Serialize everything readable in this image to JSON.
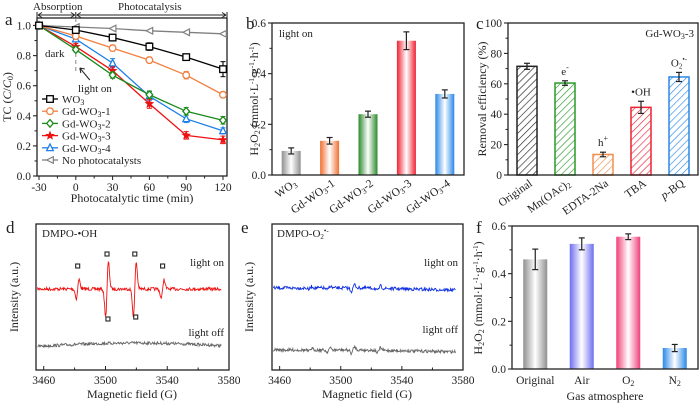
{
  "figure": {
    "panel_labels": [
      "a",
      "b",
      "c",
      "d",
      "e",
      "f"
    ]
  },
  "chart_data": [
    {
      "panel": "a",
      "type": "line",
      "title": "",
      "xlabel": "Photocatalytic time (min)",
      "ylabel": "TC (C/C0)",
      "x": [
        -30,
        0,
        30,
        60,
        90,
        120
      ],
      "xlim": [
        -30,
        120
      ],
      "ylim": [
        0,
        1.05
      ],
      "xticks": [
        "-30",
        "0",
        "30",
        "60",
        "90",
        "120"
      ],
      "yticks": [
        "0.0",
        "0.2",
        "0.4",
        "0.6",
        "0.8",
        "1.0"
      ],
      "top_annotations": {
        "left": "Absorption",
        "right": "Photocatalysis"
      },
      "annotations": [
        "dark",
        "light on"
      ],
      "legend_position": "bottom-left",
      "series": [
        {
          "name": "WO3",
          "label_main": "WO",
          "label_sub": "3",
          "label_suffix": "",
          "color": "#000000",
          "marker": "square",
          "values": [
            1.0,
            0.97,
            0.92,
            0.86,
            0.79,
            0.71
          ],
          "errors": [
            0.01,
            0.02,
            0.015,
            0.025,
            0.02,
            0.05
          ]
        },
        {
          "name": "Gd-WO3-1",
          "label_main": "Gd-WO",
          "label_sub": "3",
          "label_suffix": "-1",
          "color": "#F08040",
          "marker": "circle",
          "values": [
            1.0,
            0.93,
            0.85,
            0.77,
            0.67,
            0.54
          ],
          "errors": [
            0.01,
            0.015,
            0.02,
            0.02,
            0.025,
            0.02
          ]
        },
        {
          "name": "Gd-WO3-2",
          "label_main": "Gd-WO",
          "label_sub": "3",
          "label_suffix": "-2",
          "color": "#1A8A1A",
          "marker": "diamond",
          "values": [
            1.0,
            0.84,
            0.67,
            0.54,
            0.43,
            0.37
          ],
          "errors": [
            0.01,
            0.015,
            0.02,
            0.025,
            0.025,
            0.025
          ]
        },
        {
          "name": "Gd-WO3-3",
          "label_main": "Gd-WO",
          "label_sub": "3",
          "label_suffix": "-3",
          "color": "#EE1111",
          "marker": "star",
          "values": [
            1.0,
            0.86,
            0.7,
            0.48,
            0.27,
            0.24
          ],
          "errors": [
            0.01,
            0.02,
            0.025,
            0.03,
            0.025,
            0.025
          ]
        },
        {
          "name": "Gd-WO3-4",
          "label_main": "Gd-WO",
          "label_sub": "3",
          "label_suffix": "-4",
          "color": "#1E7FE8",
          "marker": "triangle",
          "values": [
            1.0,
            0.91,
            0.75,
            0.53,
            0.38,
            0.3
          ],
          "errors": [
            0.01,
            0.02,
            0.03,
            0.03,
            0.025,
            0.02
          ]
        },
        {
          "name": "No photocatalysts",
          "label_main": "No photocatalysts",
          "label_sub": "",
          "label_suffix": "",
          "color": "#808080",
          "marker": "triangle-left",
          "values": [
            1.0,
            0.99,
            0.98,
            0.965,
            0.955,
            0.945
          ],
          "errors": [
            0,
            0,
            0,
            0,
            0,
            0
          ]
        }
      ]
    },
    {
      "panel": "b",
      "type": "bar",
      "title": "",
      "annotation": "light on",
      "xlabel": "",
      "ylabel": "H2O2 (mmol·L-1·g-1·h-1)",
      "ylim": [
        0,
        0.6
      ],
      "yticks": [
        "0.0",
        "0.2",
        "0.4",
        "0.6"
      ],
      "categories": [
        "WO3",
        "Gd-WO3-1",
        "Gd-WO3-2",
        "Gd-WO3-3",
        "Gd-WO3-4"
      ],
      "values": [
        0.095,
        0.135,
        0.24,
        0.53,
        0.32
      ],
      "errors": [
        0.012,
        0.013,
        0.012,
        0.035,
        0.016
      ],
      "colors": [
        "#909090",
        "#F07030",
        "#2A8A2A",
        "#EE2233",
        "#2A88E8"
      ]
    },
    {
      "panel": "c",
      "type": "bar",
      "title": "Gd-WO3-3",
      "xlabel": "",
      "ylabel": "Removal efficiency (%)",
      "ylim": [
        0,
        100
      ],
      "yticks": [
        "0",
        "20",
        "40",
        "60",
        "80",
        "100"
      ],
      "categories": [
        "Original",
        "Mn(OAc)2",
        "EDTA-2Na",
        "TBA",
        "p-BQ"
      ],
      "values": [
        71.5,
        60.5,
        13.5,
        44.5,
        64.5
      ],
      "errors": [
        2.0,
        1.5,
        1.5,
        4.0,
        3.0
      ],
      "bar_labels": [
        "",
        "e-",
        "h+",
        "•OH",
        "O2•-"
      ],
      "colors": [
        "#222222",
        "#2A9A2A",
        "#F09050",
        "#EE2233",
        "#2A88E8"
      ],
      "pattern": "hatched"
    },
    {
      "panel": "d",
      "type": "line",
      "title": "DMPO-•OH",
      "xlabel": "Magnetic field (G)",
      "ylabel": "Intensity (a.u.)",
      "xlim": [
        3455,
        3580
      ],
      "xticks": [
        "3460",
        "3500",
        "3540",
        "3580"
      ],
      "series": [
        {
          "name": "light on",
          "color": "#EE1111",
          "peaks_G": [
            3482,
            3501,
            3519,
            3537
          ],
          "peak_amplitude_rel": [
            0.35,
            1.0,
            1.0,
            0.35
          ]
        },
        {
          "name": "light off",
          "color": "#666666",
          "peaks_G": [],
          "peak_amplitude_rel": []
        }
      ]
    },
    {
      "panel": "e",
      "type": "line",
      "title": "DMPO-O2•-",
      "xlabel": "Magnetic field (G)",
      "ylabel": "Intensity (a.u.)",
      "xlim": [
        3455,
        3580
      ],
      "xticks": [
        "3460",
        "3500",
        "3540",
        "3580"
      ],
      "series": [
        {
          "name": "light on",
          "color": "#1030E0"
        },
        {
          "name": "light off",
          "color": "#666666"
        }
      ]
    },
    {
      "panel": "f",
      "type": "bar",
      "title": "",
      "xlabel": "Gas atmosphere",
      "ylabel": "H2O2 (mmol·L-1·g-1·h-1)",
      "ylim": [
        0,
        0.6
      ],
      "yticks": [
        "0.0",
        "0.2",
        "0.4",
        "0.6"
      ],
      "categories": [
        "Original",
        "Air",
        "O2",
        "N2"
      ],
      "values": [
        0.46,
        0.525,
        0.555,
        0.088
      ],
      "errors": [
        0.043,
        0.025,
        0.012,
        0.015
      ],
      "colors": [
        "#909090",
        "#6E6EF0",
        "#F0407A",
        "#2A88E8"
      ]
    }
  ]
}
